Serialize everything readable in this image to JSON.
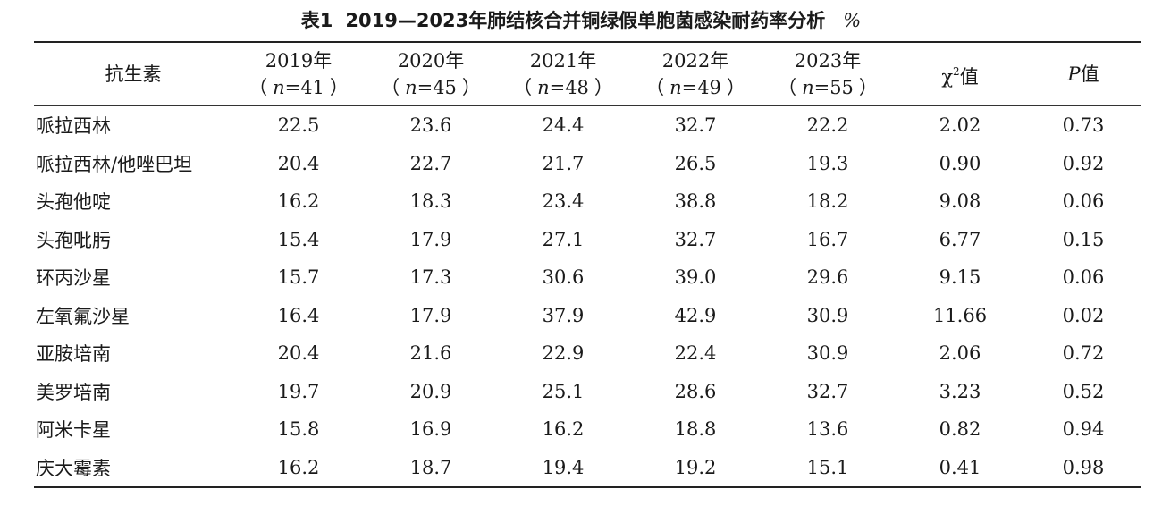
{
  "caption": {
    "label": "表1",
    "title": "2019—2023年肺结核合并铜绿假单胞菌感染耐药率分析",
    "unit": "%"
  },
  "table": {
    "header": {
      "drug_col": "抗生素",
      "years": [
        {
          "year": "2019年",
          "n_var": "n",
          "n_value": "=41"
        },
        {
          "year": "2020年",
          "n_var": "n",
          "n_value": "=45"
        },
        {
          "year": "2021年",
          "n_var": "n",
          "n_value": "=48"
        },
        {
          "year": "2022年",
          "n_var": "n",
          "n_value": "=49"
        },
        {
          "year": "2023年",
          "n_var": "n",
          "n_value": "=55"
        }
      ],
      "chi_symbol": "χ",
      "chi_sup": "2",
      "chi_suffix": "值",
      "p_symbol": "P",
      "p_suffix": "值"
    },
    "rows": [
      {
        "drug": "哌拉西林",
        "values": [
          "22.5",
          "23.6",
          "24.4",
          "32.7",
          "22.2"
        ],
        "chi2": "2.02",
        "p": "0.73"
      },
      {
        "drug": "哌拉西林/他唑巴坦",
        "values": [
          "20.4",
          "22.7",
          "21.7",
          "26.5",
          "19.3"
        ],
        "chi2": "0.90",
        "p": "0.92"
      },
      {
        "drug": "头孢他啶",
        "values": [
          "16.2",
          "18.3",
          "23.4",
          "38.8",
          "18.2"
        ],
        "chi2": "9.08",
        "p": "0.06"
      },
      {
        "drug": "头孢吡肟",
        "values": [
          "15.4",
          "17.9",
          "27.1",
          "32.7",
          "16.7"
        ],
        "chi2": "6.77",
        "p": "0.15"
      },
      {
        "drug": "环丙沙星",
        "values": [
          "15.7",
          "17.3",
          "30.6",
          "39.0",
          "29.6"
        ],
        "chi2": "9.15",
        "p": "0.06"
      },
      {
        "drug": "左氧氟沙星",
        "values": [
          "16.4",
          "17.9",
          "37.9",
          "42.9",
          "30.9"
        ],
        "chi2": "11.66",
        "p": "0.02"
      },
      {
        "drug": "亚胺培南",
        "values": [
          "20.4",
          "21.6",
          "22.9",
          "22.4",
          "30.9"
        ],
        "chi2": "2.06",
        "p": "0.72"
      },
      {
        "drug": "美罗培南",
        "values": [
          "19.7",
          "20.9",
          "25.1",
          "28.6",
          "32.7"
        ],
        "chi2": "3.23",
        "p": "0.52"
      },
      {
        "drug": "阿米卡星",
        "values": [
          "15.8",
          "16.9",
          "16.2",
          "18.8",
          "13.6"
        ],
        "chi2": "0.82",
        "p": "0.94"
      },
      {
        "drug": "庆大霉素",
        "values": [
          "16.2",
          "18.7",
          "19.4",
          "19.2",
          "15.1"
        ],
        "chi2": "0.41",
        "p": "0.98"
      }
    ]
  }
}
